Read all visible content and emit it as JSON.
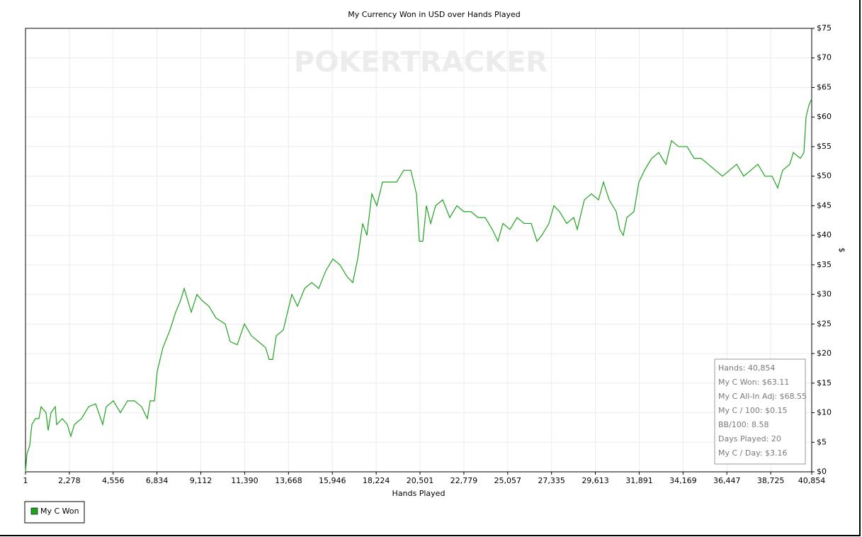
{
  "chart_data": {
    "type": "line",
    "title": "My Currency Won in USD over Hands Played",
    "watermark": "POKERTRACKER",
    "xlabel": "Hands Played",
    "ylabel": "$",
    "xlim": [
      1,
      40854
    ],
    "ylim": [
      0,
      75
    ],
    "grid": true,
    "legend": "bottom-left",
    "xticks": [
      1,
      {
        "value": 2278,
        "label": "2,278"
      },
      {
        "value": 4556,
        "label": "4,556"
      },
      {
        "value": 6834,
        "label": "6,834"
      },
      {
        "value": 9112,
        "label": "9,112"
      },
      {
        "value": 11390,
        "label": "11,390"
      },
      {
        "value": 13668,
        "label": "13,668"
      },
      {
        "value": 15946,
        "label": "15,946"
      },
      {
        "value": 18224,
        "label": "18,224"
      },
      {
        "value": 20501,
        "label": "20,501"
      },
      {
        "value": 22779,
        "label": "22,779"
      },
      {
        "value": 25057,
        "label": "25,057"
      },
      {
        "value": 27335,
        "label": "27,335"
      },
      {
        "value": 29613,
        "label": "29,613"
      },
      {
        "value": 31891,
        "label": "31,891"
      },
      {
        "value": 34169,
        "label": "34,169"
      },
      {
        "value": 36447,
        "label": "36,447"
      },
      {
        "value": 38725,
        "label": "38,725"
      },
      {
        "value": 40854,
        "label": "40,854"
      }
    ],
    "yticks": [
      {
        "value": 0,
        "label": "$0"
      },
      {
        "value": 5,
        "label": "$5"
      },
      {
        "value": 10,
        "label": "$10"
      },
      {
        "value": 15,
        "label": "$15"
      },
      {
        "value": 20,
        "label": "$20"
      },
      {
        "value": 25,
        "label": "$25"
      },
      {
        "value": 30,
        "label": "$30"
      },
      {
        "value": 35,
        "label": "$35"
      },
      {
        "value": 40,
        "label": "$40"
      },
      {
        "value": 45,
        "label": "$45"
      },
      {
        "value": 50,
        "label": "$50"
      },
      {
        "value": 55,
        "label": "$55"
      },
      {
        "value": 60,
        "label": "$60"
      },
      {
        "value": 65,
        "label": "$65"
      },
      {
        "value": 70,
        "label": "$70"
      },
      {
        "value": 75,
        "label": "$75"
      }
    ],
    "x": [
      1,
      75,
      222,
      332,
      516,
      700,
      811,
      1068,
      1179,
      1326,
      1547,
      1620,
      1915,
      2173,
      2357,
      2541,
      2909,
      3277,
      3645,
      4013,
      4197,
      4565,
      4933,
      5301,
      5669,
      6037,
      6331,
      6479,
      6700,
      6847,
      7141,
      7510,
      7804,
      8062,
      8246,
      8430,
      8614,
      8908,
      9165,
      9534,
      9902,
      10380,
      10637,
      11006,
      11374,
      11742,
      12110,
      12478,
      12662,
      12846,
      13030,
      13398,
      13840,
      14134,
      14502,
      14870,
      15238,
      15606,
      15974,
      16342,
      16710,
      17005,
      17262,
      17520,
      17741,
      17998,
      18256,
      18550,
      18918,
      19287,
      19655,
      20023,
      20317,
      20465,
      20649,
      20833,
      21053,
      21311,
      21679,
      22047,
      22415,
      22783,
      23151,
      23519,
      23887,
      24255,
      24550,
      24808,
      25176,
      25544,
      25912,
      26280,
      26574,
      26832,
      27200,
      27457,
      27752,
      28120,
      28488,
      28672,
      29040,
      29408,
      29776,
      30034,
      30328,
      30696,
      30880,
      31064,
      31248,
      31617,
      31874,
      32169,
      32537,
      32905,
      33273,
      33567,
      33935,
      34377,
      34745,
      35113,
      35481,
      35849,
      36217,
      36585,
      36953,
      37321,
      37689,
      38057,
      38425,
      38793,
      39087,
      39345,
      39713,
      39897,
      40265,
      40449,
      40560,
      40707,
      40854
    ],
    "series": [
      {
        "name": "My C Won",
        "color": "#1fa31f",
        "values": [
          0,
          3,
          4.5,
          8,
          9,
          9,
          11,
          10,
          7,
          10,
          11,
          8,
          9,
          8,
          6,
          8,
          9,
          11,
          11.5,
          8,
          11,
          12,
          10,
          12,
          12,
          11,
          9,
          12,
          12,
          17,
          21,
          24,
          27,
          29,
          31,
          29,
          27,
          30,
          29,
          28,
          26,
          25,
          22,
          21.5,
          25,
          23,
          22,
          21,
          19,
          19,
          23,
          24,
          30,
          28,
          31,
          32,
          31,
          34,
          36,
          35,
          33,
          32,
          36,
          42,
          40,
          47,
          45,
          49,
          49,
          49,
          51,
          51,
          47,
          39,
          39,
          45,
          42,
          45,
          46,
          43,
          45,
          44,
          44,
          43,
          43,
          41,
          39,
          42,
          41,
          43,
          42,
          42,
          39,
          40,
          42,
          45,
          44,
          42,
          43,
          41,
          46,
          47,
          46,
          49,
          46,
          44,
          41,
          40,
          43,
          44,
          49,
          51,
          53,
          54,
          52,
          56,
          55,
          55,
          53,
          53,
          52,
          51,
          50,
          51,
          52,
          50,
          51,
          52,
          50,
          50,
          48,
          51,
          52,
          54,
          53,
          54,
          60,
          62,
          63.11
        ]
      }
    ],
    "stats": [
      "Hands: 40,854",
      "My C Won: $63.11",
      "My C All-In Adj: $68.55",
      "My C / 100: $0.15",
      "BB/100: 8.58",
      "Days Played: 20",
      "My C / Day: $3.16"
    ]
  }
}
